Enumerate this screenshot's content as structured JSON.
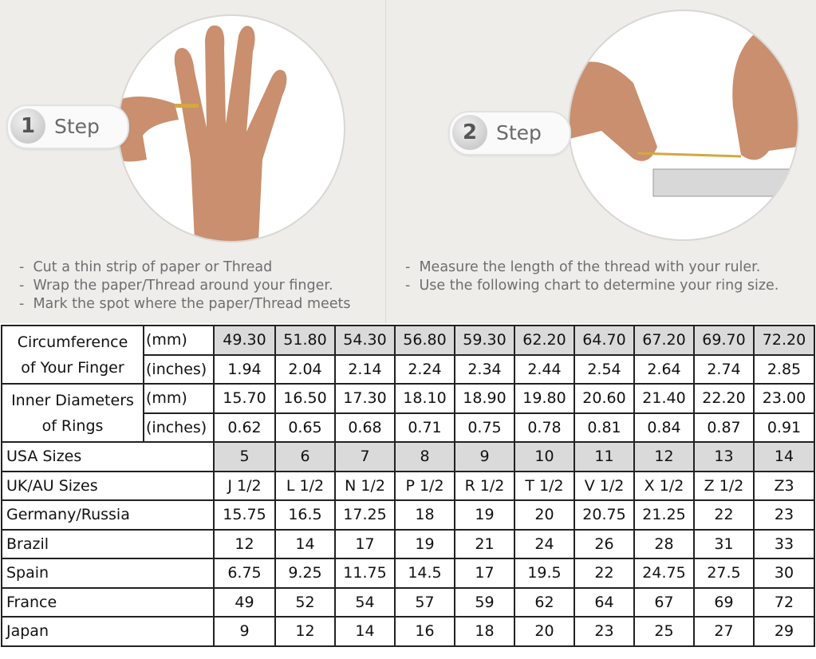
{
  "steps": [
    {
      "number": "1",
      "label": "Step",
      "image": "hand-with-ring-photo",
      "instructions": [
        "Cut a thin strip of paper or Thread",
        "Wrap the paper/Thread around your finger.",
        "Mark the spot where the paper/Thread meets"
      ]
    },
    {
      "number": "2",
      "label": "Step",
      "image": "thread-on-ruler-photo",
      "instructions": [
        "Measure the length of the thread with your ruler.",
        "Use the following chart to determine your ring size."
      ]
    }
  ],
  "colors": {
    "background": "#efedea",
    "shaded_cell": "#dadada",
    "border": "#222222"
  },
  "table": {
    "circumference": {
      "label_line1": "Circumference",
      "label_line2": "of Your Finger",
      "mm_unit": "(mm)",
      "inch_unit": "(inches)",
      "mm": [
        "49.30",
        "51.80",
        "54.30",
        "56.80",
        "59.30",
        "62.20",
        "64.70",
        "67.20",
        "69.70",
        "72.20"
      ],
      "inches": [
        "1.94",
        "2.04",
        "2.14",
        "2.24",
        "2.34",
        "2.44",
        "2.54",
        "2.64",
        "2.74",
        "2.85"
      ]
    },
    "diameter": {
      "label_line1": "Inner Diameters",
      "label_line2": "of Rings",
      "mm_unit": "(mm)",
      "inch_unit": "(inches)",
      "mm": [
        "15.70",
        "16.50",
        "17.30",
        "18.10",
        "18.90",
        "19.80",
        "20.60",
        "21.40",
        "22.20",
        "23.00"
      ],
      "inches": [
        "0.62",
        "0.65",
        "0.68",
        "0.71",
        "0.75",
        "0.78",
        "0.81",
        "0.84",
        "0.87",
        "0.91"
      ]
    },
    "rows": [
      {
        "label": "USA Sizes",
        "shaded": true,
        "values": [
          "5",
          "6",
          "7",
          "8",
          "9",
          "10",
          "11",
          "12",
          "13",
          "14"
        ]
      },
      {
        "label": "UK/AU Sizes",
        "values": [
          "J 1/2",
          "L 1/2",
          "N 1/2",
          "P 1/2",
          "R 1/2",
          "T 1/2",
          "V 1/2",
          "X 1/2",
          "Z 1/2",
          "Z3"
        ]
      },
      {
        "label": "Germany/Russia",
        "values": [
          "15.75",
          "16.5",
          "17.25",
          "18",
          "19",
          "20",
          "20.75",
          "21.25",
          "22",
          "23"
        ]
      },
      {
        "label": "Brazil",
        "values": [
          "12",
          "14",
          "17",
          "19",
          "21",
          "24",
          "26",
          "28",
          "31",
          "33"
        ]
      },
      {
        "label": "Spain",
        "values": [
          "6.75",
          "9.25",
          "11.75",
          "14.5",
          "17",
          "19.5",
          "22",
          "24.75",
          "27.5",
          "30"
        ]
      },
      {
        "label": "France",
        "values": [
          "49",
          "52",
          "54",
          "57",
          "59",
          "62",
          "64",
          "67",
          "69",
          "72"
        ]
      },
      {
        "label": "Japan",
        "values": [
          "9",
          "12",
          "14",
          "16",
          "18",
          "20",
          "23",
          "25",
          "27",
          "29"
        ]
      }
    ]
  }
}
